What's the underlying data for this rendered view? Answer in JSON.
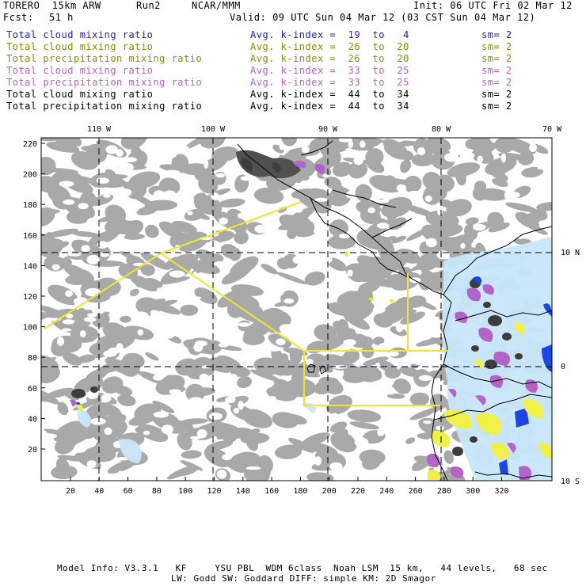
{
  "header": {
    "model": "TORERO  15km ARW",
    "run": "Run2",
    "org": "NCAR/MMM",
    "init": "Init: 06 UTC Fri 02 Mar 12",
    "fcst_label": "Fcst:",
    "fcst_value": "51 h",
    "valid": "Valid: 09 UTC Sun 04 Mar 12 (03 CST Sun 04 Mar 12)"
  },
  "legend": [
    {
      "name": "Total cloud mixing ratio",
      "kindex": "Avg. k-index =  19  to   4",
      "sm": "sm= 2",
      "color": "#1a1ae6"
    },
    {
      "name": "Total cloud mixing ratio",
      "kindex": "Avg. k-index =  26  to  20",
      "sm": "sm= 2",
      "color": "#8c8c00"
    },
    {
      "name": "Total precipitation mixing ratio",
      "kindex": "Avg. k-index =  26  to  20",
      "sm": "sm= 2",
      "color": "#8c8c00"
    },
    {
      "name": "Total cloud mixing ratio",
      "kindex": "Avg. k-index =  33  to  25",
      "sm": "sm= 2",
      "color": "#b464c8"
    },
    {
      "name": "Total precipitation mixing ratio",
      "kindex": "Avg. k-index =  33  to  25",
      "sm": "sm= 2",
      "color": "#b464c8"
    },
    {
      "name": "Total cloud mixing ratio",
      "kindex": "Avg. k-index =  44  to  34",
      "sm": "sm= 2",
      "color": "#000000"
    },
    {
      "name": "Total precipitation mixing ratio",
      "kindex": "Avg. k-index =  44  to  34",
      "sm": "sm= 2",
      "color": "#000000"
    }
  ],
  "map": {
    "lon_labels": [
      "110 W",
      "100 W",
      "90 W",
      "80 W",
      "70 W"
    ],
    "lat_labels": [
      "10 N",
      "0",
      "10 S"
    ],
    "y_ticks": [
      "220",
      "200",
      "180",
      "160",
      "140",
      "120",
      "100",
      "80",
      "60",
      "40",
      "20"
    ],
    "x_ticks": [
      "20",
      "40",
      "60",
      "80",
      "100",
      "120",
      "140",
      "160",
      "180",
      "200",
      "220",
      "240",
      "260",
      "280",
      "300",
      "320"
    ],
    "colors": {
      "cloud_gray": "#a9a9a9",
      "cloud_dark": "#3c3c3c",
      "low_cyan": "#c8e6fa",
      "blue": "#1a46e6",
      "purple": "#b464c8",
      "yellow_fill": "#f0f046",
      "box_line": "#f0e632"
    }
  },
  "footer": {
    "line1": "Model Info: V3.3.1   KF     YSU PBL  WDM 6class  Noah LSM  15 km,   44 levels,   68 sec",
    "line2": "LW: Godd SW: Goddard DIFF: simple KM: 2D Smagor"
  }
}
